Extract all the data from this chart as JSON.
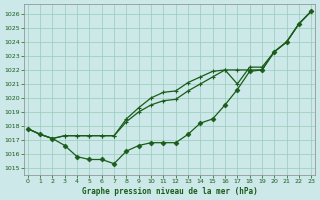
{
  "xlabel": "Graphe pression niveau de la mer (hPa)",
  "ylim": [
    1014.5,
    1026.7
  ],
  "xlim": [
    -0.3,
    23.3
  ],
  "yticks": [
    1015,
    1016,
    1017,
    1018,
    1019,
    1020,
    1021,
    1022,
    1023,
    1024,
    1025,
    1026
  ],
  "xticks": [
    0,
    1,
    2,
    3,
    4,
    5,
    6,
    7,
    8,
    9,
    10,
    11,
    12,
    13,
    14,
    15,
    16,
    17,
    18,
    19,
    20,
    21,
    22,
    23
  ],
  "bg_color": "#cce8e8",
  "grid_color": "#99ccbb",
  "line_color": "#1a5c1a",
  "line1_y": [
    1017.8,
    1017.4,
    1017.1,
    1017.3,
    1017.3,
    1017.3,
    1017.3,
    1017.3,
    1018.3,
    1019.0,
    1019.5,
    1019.8,
    1019.9,
    1020.5,
    1021.0,
    1021.5,
    1022.0,
    1022.0,
    1022.0,
    1022.0,
    1023.3,
    1024.0,
    1025.3,
    1026.2
  ],
  "line2_y": [
    1017.8,
    1017.4,
    1017.1,
    1017.3,
    1017.3,
    1017.3,
    1017.3,
    1017.3,
    1018.5,
    1019.3,
    1020.0,
    1020.4,
    1020.5,
    1021.1,
    1021.5,
    1021.9,
    1022.0,
    1021.0,
    1022.2,
    1022.2,
    1023.3,
    1024.0,
    1025.3,
    1026.2
  ],
  "line3_y": [
    1017.8,
    1017.4,
    1017.1,
    1016.6,
    1015.8,
    1015.6,
    1015.6,
    1015.3,
    1016.2,
    1016.6,
    1016.8,
    1016.8,
    1016.8,
    1017.4,
    1018.2,
    1018.5,
    1019.5,
    1020.6,
    1021.9,
    1022.0,
    1023.3,
    1024.0,
    1025.3,
    1026.2
  ]
}
